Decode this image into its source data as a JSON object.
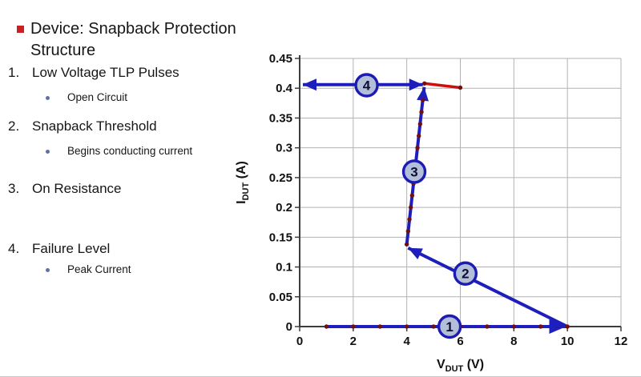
{
  "slide": {
    "title_lines": [
      "Device: Snapback Protection",
      "Structure"
    ],
    "items": [
      {
        "num": "1.",
        "label": "Low Voltage TLP Pulses",
        "sub": "Open Circuit"
      },
      {
        "num": "2.",
        "label": "Snapback Threshold",
        "sub": "Begins conducting current"
      },
      {
        "num": "3.",
        "label": "On Resistance",
        "sub": ""
      },
      {
        "num": "4.",
        "label": "Failure Level",
        "sub": "Peak Current"
      }
    ],
    "bullet_color": "#cc2020"
  },
  "chart_data": {
    "type": "line",
    "title": "",
    "xlabel": {
      "symbol": "V",
      "subscript": "DUT",
      "unit": "(V)"
    },
    "ylabel": {
      "symbol": "I",
      "subscript": "DUT",
      "unit": "(A)"
    },
    "xlim": [
      0,
      12
    ],
    "ylim": [
      0,
      0.45
    ],
    "grid": true,
    "legend": "none",
    "xticks": {
      "values": [
        0,
        2,
        4,
        6,
        8,
        10,
        12
      ],
      "labels": [
        "0",
        "2",
        "4",
        "6",
        "8",
        "10",
        "12"
      ]
    },
    "yticks": {
      "values": [
        0,
        0.05,
        0.1,
        0.15,
        0.2,
        0.25,
        0.3,
        0.35,
        0.4,
        0.45
      ],
      "labels": [
        "0",
        "0.05",
        "0.1",
        "0.15",
        "0.2",
        "0.25",
        "0.3",
        "0.35",
        "0.4",
        "0.45"
      ]
    },
    "colors": {
      "trace_blue": "#1e1ebc",
      "trace_red": "#cc1010",
      "marker": "#701010",
      "grid": "#b3b3b3",
      "axis": "#3d3d3d",
      "tick_text": "#111111",
      "step_circle_fill": "#b3bfd9",
      "step_circle_border": "#1c1cb4",
      "step_label": "#0e0e2e"
    },
    "segments": [
      {
        "name": "step1-low-voltage-pulses",
        "color": "blue",
        "width": 4,
        "arrow": "end",
        "arrow_len": 21,
        "arrow_hw": 9,
        "points": [
          [
            1,
            0
          ],
          [
            9.95,
            0
          ]
        ],
        "markers": [
          [
            1,
            0
          ],
          [
            2,
            0
          ],
          [
            3,
            0
          ],
          [
            4,
            0
          ],
          [
            5,
            0
          ],
          [
            6,
            0
          ],
          [
            7,
            0
          ],
          [
            8,
            0
          ],
          [
            9,
            0
          ],
          [
            10,
            0
          ]
        ]
      },
      {
        "name": "step2-snapback-threshold",
        "color": "blue",
        "width": 4,
        "arrow": "end",
        "arrow_len": 17,
        "arrow_hw": 7.5,
        "points": [
          [
            10,
            0
          ],
          [
            4.05,
            0.132
          ]
        ],
        "markers": [
          [
            4.0,
            0.138
          ]
        ]
      },
      {
        "name": "step3-on-resistance",
        "color": "blue",
        "width": 4,
        "arrow": "end",
        "arrow_len": 17,
        "arrow_hw": 7.5,
        "points": [
          [
            4.0,
            0.138
          ],
          [
            4.65,
            0.402
          ]
        ],
        "markers": [
          [
            4.05,
            0.16
          ],
          [
            4.1,
            0.18
          ],
          [
            4.15,
            0.2
          ],
          [
            4.2,
            0.22
          ],
          [
            4.25,
            0.24
          ],
          [
            4.4,
            0.3
          ],
          [
            4.45,
            0.32
          ],
          [
            4.5,
            0.34
          ],
          [
            4.55,
            0.36
          ],
          [
            4.6,
            0.38
          ]
        ]
      },
      {
        "name": "post-failure-trace",
        "color": "red",
        "width": 3.5,
        "arrow": "none",
        "points": [
          [
            4.66,
            0.408
          ],
          [
            6.0,
            0.401
          ]
        ],
        "markers": [
          [
            4.66,
            0.408
          ],
          [
            6.0,
            0.401
          ]
        ]
      },
      {
        "name": "step4-failure-level",
        "color": "blue",
        "width": 4,
        "arrow": "both",
        "arrow_len": 17,
        "arrow_hw": 7.5,
        "points": [
          [
            0.12,
            0.406
          ],
          [
            4.6,
            0.406
          ]
        ],
        "markers": []
      }
    ],
    "step_markers": [
      {
        "label": "1",
        "v": 5.6,
        "i": 0.0
      },
      {
        "label": "2",
        "v": 6.19,
        "i": 0.089
      },
      {
        "label": "3",
        "v": 4.28,
        "i": 0.26
      },
      {
        "label": "4",
        "v": 2.5,
        "i": 0.405
      }
    ]
  }
}
